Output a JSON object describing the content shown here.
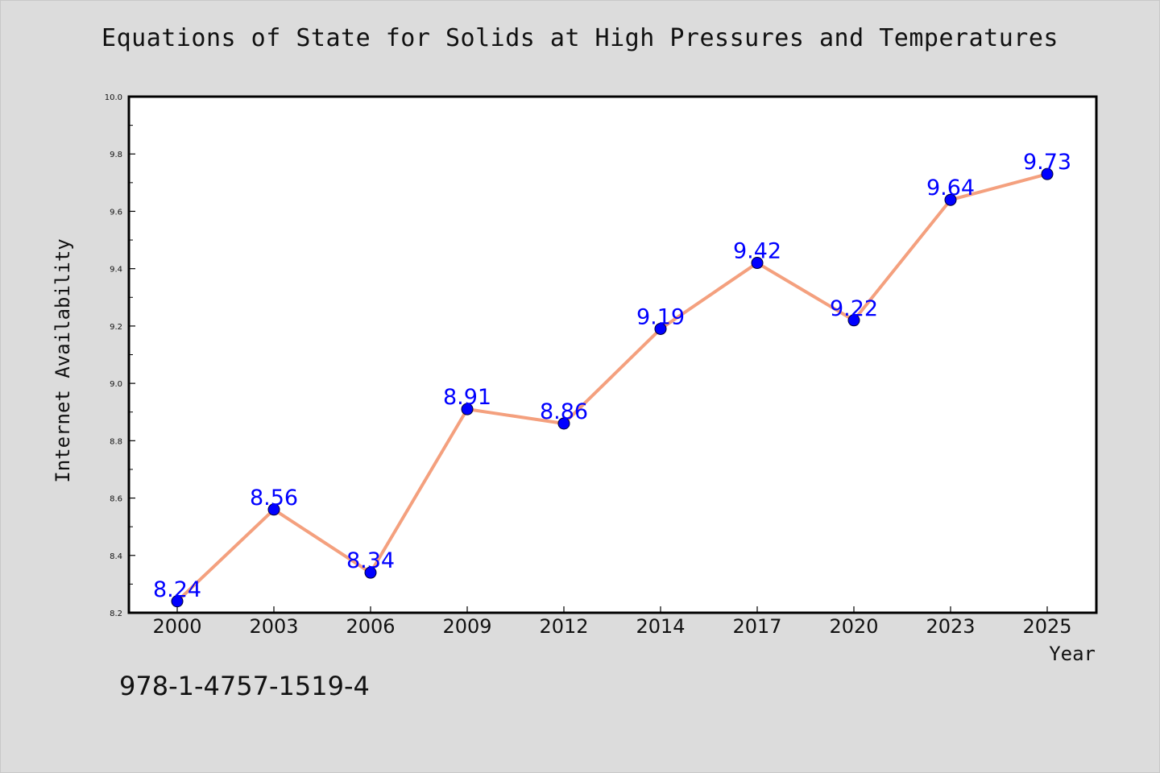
{
  "chart_data": {
    "type": "line",
    "title": "Equations of State for Solids at High Pressures and Temperatures",
    "xlabel": "Year",
    "ylabel": "Internet Availability",
    "categories": [
      "2000",
      "2003",
      "2006",
      "2009",
      "2012",
      "2014",
      "2017",
      "2020",
      "2023",
      "2025"
    ],
    "series": [
      {
        "values": [
          8.24,
          8.56,
          8.34,
          8.91,
          8.86,
          9.19,
          9.42,
          9.22,
          9.64,
          9.73
        ]
      }
    ],
    "data_labels": [
      "8.24",
      "8.56",
      "8.34",
      "8.91",
      "8.86",
      "9.19",
      "9.42",
      "9.22",
      "9.64",
      "9.73"
    ],
    "ylim": [
      8.2,
      10.0
    ],
    "yticks": [
      "8.2",
      "8.4",
      "8.6",
      "8.8",
      "9.0",
      "9.2",
      "9.4",
      "9.6",
      "9.8",
      "10.0"
    ],
    "grid": false,
    "legend": "none",
    "colors": {
      "line": "#f4a07e",
      "marker": "#0000ff",
      "label": "#0000ff",
      "background": "#dcdcdc",
      "plot": "#ffffff"
    }
  },
  "footer_text": "978-1-4757-1519-4"
}
